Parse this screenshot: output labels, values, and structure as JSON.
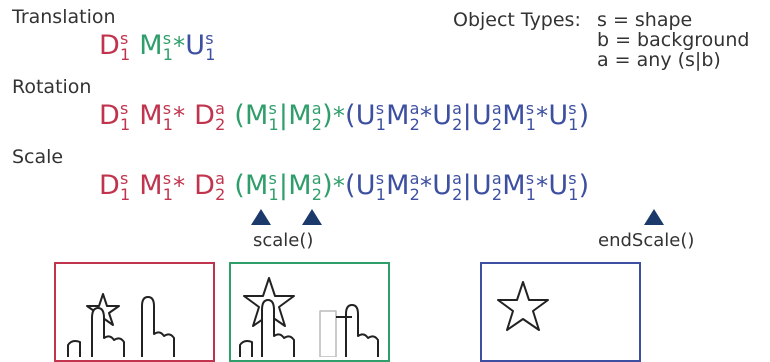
{
  "headings": {
    "translation": "Translation",
    "rotation": "Rotation",
    "scale": "Scale"
  },
  "object_types": {
    "title": "Object Types:",
    "lines": [
      "s = shape",
      "b = background",
      "a = any (s|b)"
    ]
  },
  "symbols": {
    "D": "D",
    "M": "M",
    "U": "U",
    "s": "s",
    "a": "a",
    "one": "1",
    "two": "2",
    "star_op": "*",
    "bar": "|",
    "lp": "(",
    "rp": ")"
  },
  "calls": {
    "scale": "scale()",
    "end_scale": "endScale()"
  },
  "colors": {
    "down": "#c0344e",
    "move": "#2f9e6a",
    "up": "#3d4fa0",
    "marker": "#1b3a6b"
  }
}
